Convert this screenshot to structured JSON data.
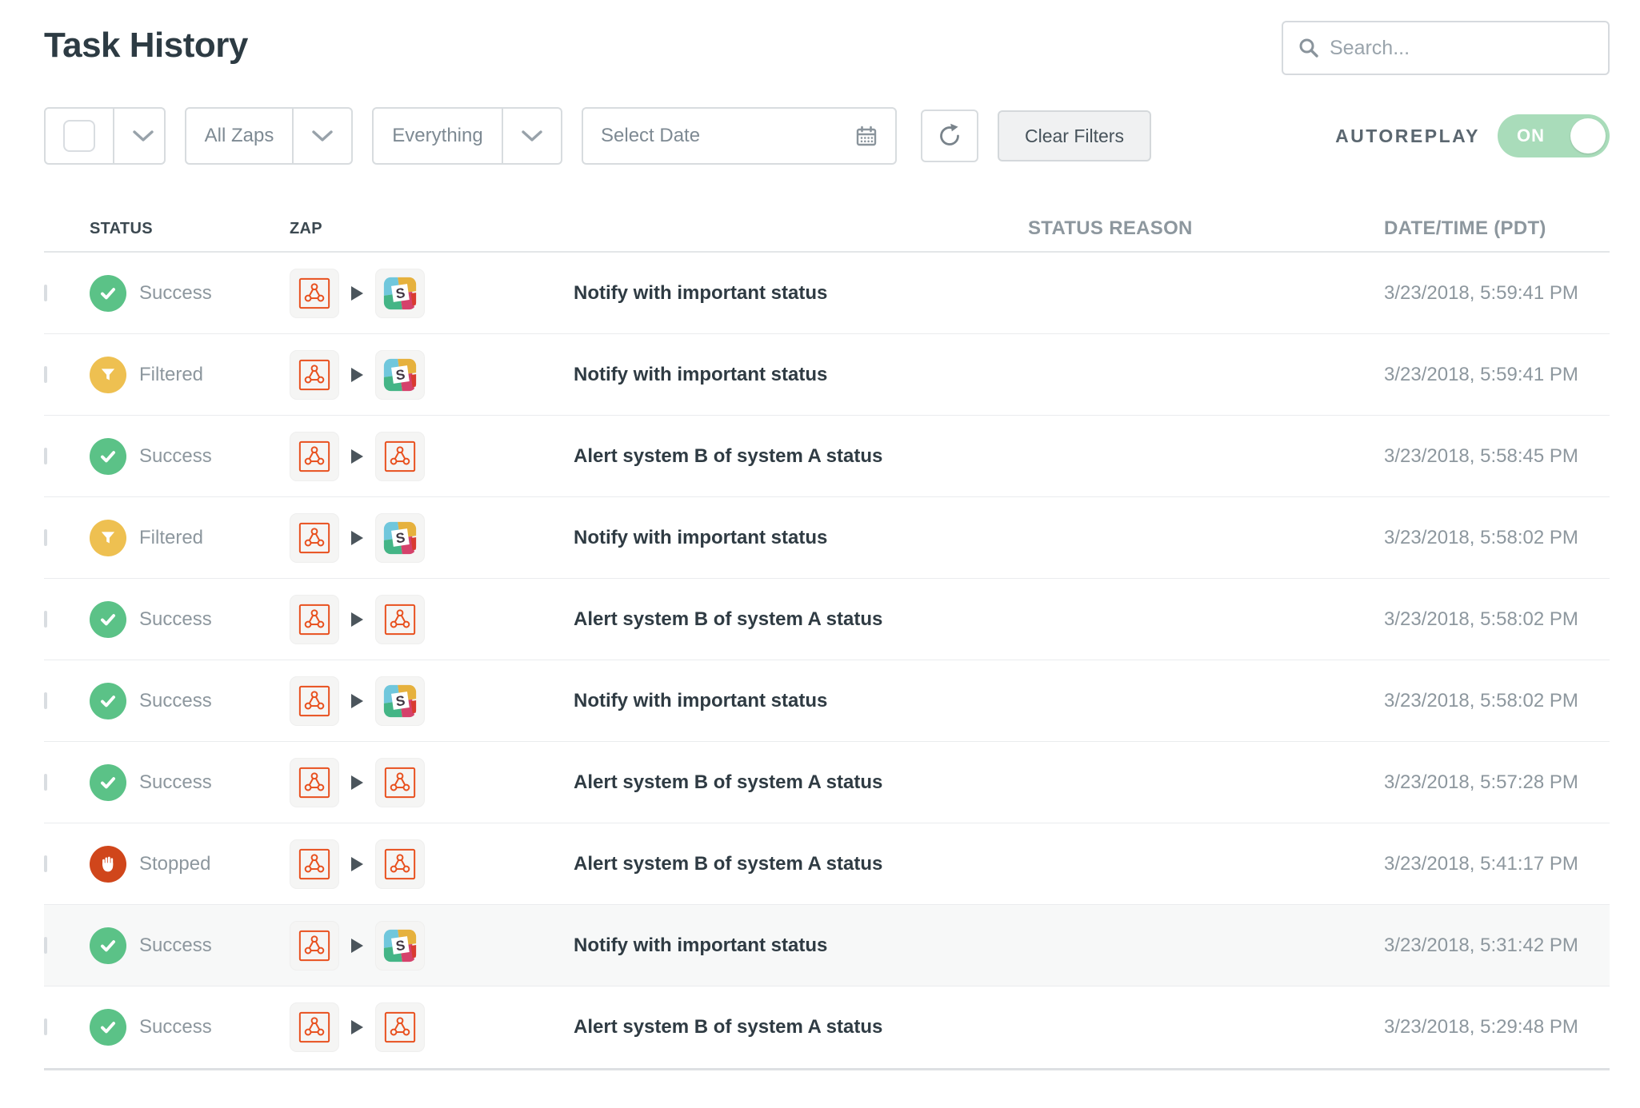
{
  "header": {
    "title": "Task History",
    "search_placeholder": "Search..."
  },
  "filterbar": {
    "zap_filter_label": "All Zaps",
    "type_filter_label": "Everything",
    "date_placeholder": "Select Date",
    "clear_filters_label": "Clear Filters",
    "autoreplay_label": "AUTOREPLAY",
    "autoreplay_state": "ON"
  },
  "table": {
    "headers": {
      "status": "STATUS",
      "zap": "ZAP",
      "status_reason": "STATUS REASON",
      "datetime": "DATE/TIME (PDT)"
    },
    "rows": [
      {
        "status": "Success",
        "app_from": "webhook",
        "app_to": "slack",
        "name": "Notify with important status",
        "status_reason": "",
        "datetime": "3/23/2018, 5:59:41 PM",
        "highlighted": false
      },
      {
        "status": "Filtered",
        "app_from": "webhook",
        "app_to": "slack",
        "name": "Notify with important status",
        "status_reason": "",
        "datetime": "3/23/2018, 5:59:41 PM",
        "highlighted": false
      },
      {
        "status": "Success",
        "app_from": "webhook",
        "app_to": "webhook",
        "name": "Alert system B of system A status",
        "status_reason": "",
        "datetime": "3/23/2018, 5:58:45 PM",
        "highlighted": false
      },
      {
        "status": "Filtered",
        "app_from": "webhook",
        "app_to": "slack",
        "name": "Notify with important status",
        "status_reason": "",
        "datetime": "3/23/2018, 5:58:02 PM",
        "highlighted": false
      },
      {
        "status": "Success",
        "app_from": "webhook",
        "app_to": "webhook",
        "name": "Alert system B of system A status",
        "status_reason": "",
        "datetime": "3/23/2018, 5:58:02 PM",
        "highlighted": false
      },
      {
        "status": "Success",
        "app_from": "webhook",
        "app_to": "slack",
        "name": "Notify with important status",
        "status_reason": "",
        "datetime": "3/23/2018, 5:58:02 PM",
        "highlighted": false
      },
      {
        "status": "Success",
        "app_from": "webhook",
        "app_to": "webhook",
        "name": "Alert system B of system A status",
        "status_reason": "",
        "datetime": "3/23/2018, 5:57:28 PM",
        "highlighted": false
      },
      {
        "status": "Stopped",
        "app_from": "webhook",
        "app_to": "webhook",
        "name": "Alert system B of system A status",
        "status_reason": "",
        "datetime": "3/23/2018, 5:41:17 PM",
        "highlighted": false
      },
      {
        "status": "Success",
        "app_from": "webhook",
        "app_to": "slack",
        "name": "Notify with important status",
        "status_reason": "",
        "datetime": "3/23/2018, 5:31:42 PM",
        "highlighted": true
      },
      {
        "status": "Success",
        "app_from": "webhook",
        "app_to": "webhook",
        "name": "Alert system B of system A status",
        "status_reason": "",
        "datetime": "3/23/2018, 5:29:48 PM",
        "highlighted": false
      }
    ]
  },
  "icons": {
    "search": "search-icon (magnifier)",
    "calendar": "calendar-icon",
    "refresh": "refresh-icon (circular arrow)",
    "chevron": "chevron-down-icon",
    "success": "check-icon in green circle",
    "filtered": "funnel-icon in yellow circle",
    "stopped": "hand-icon in red circle",
    "webhook": "webhook-icon (orange node triangle)",
    "slack": "slack-icon (colorful mosaic with S)",
    "arrow": "arrow-right-icon (play triangle)"
  },
  "colors": {
    "success": "#5bc287",
    "filtered": "#eec051",
    "stopped": "#d0461b",
    "webhook_orange": "#e8501e",
    "toggle_on_bg": "#a9dcba",
    "title_text": "#2d3b43",
    "muted_text": "#8d979e",
    "highlight_row_bg": "#f7f8f8"
  }
}
